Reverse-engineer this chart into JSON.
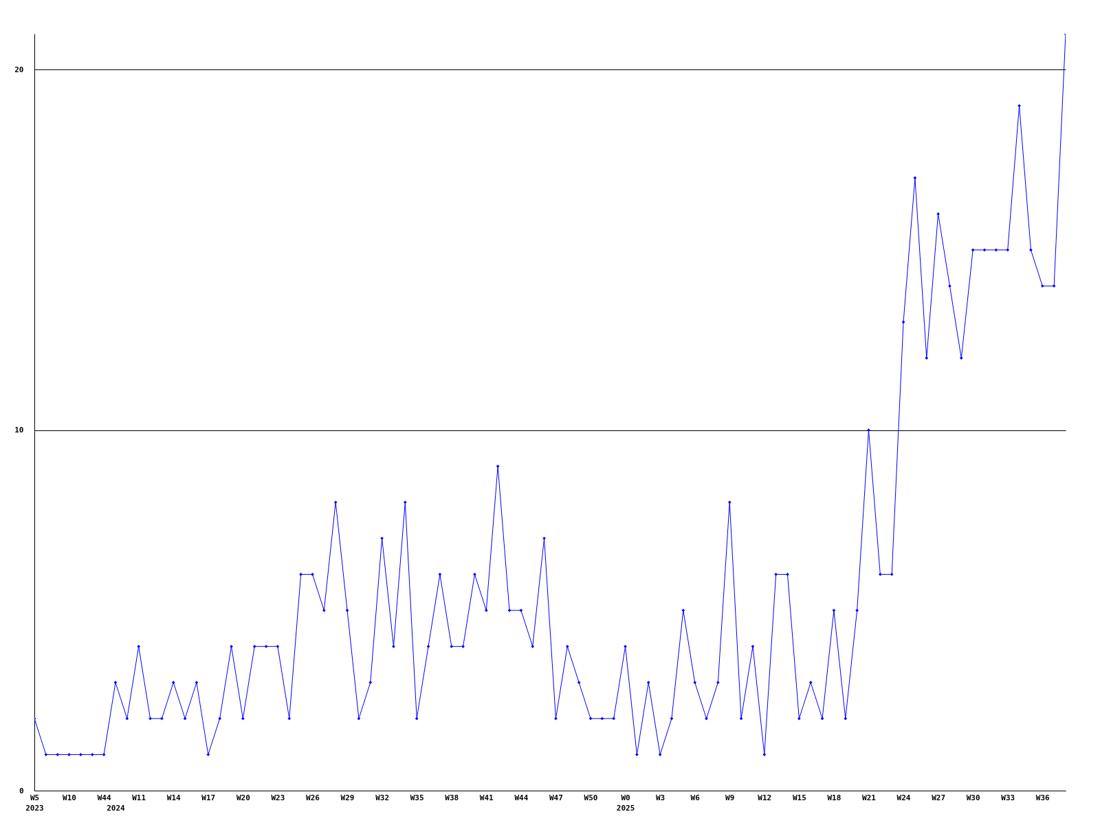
{
  "chart_data": {
    "type": "line",
    "categories": [
      "W5\n2023",
      null,
      null,
      "W10",
      null,
      null,
      "W44",
      "\n2024",
      null,
      "W11",
      null,
      null,
      "W14",
      null,
      null,
      "W17",
      null,
      null,
      "W20",
      null,
      null,
      "W23",
      null,
      null,
      "W26",
      null,
      null,
      "W29",
      null,
      null,
      "W32",
      null,
      null,
      "W35",
      null,
      null,
      "W38",
      null,
      null,
      "W41",
      null,
      null,
      "W44",
      null,
      null,
      "W47",
      null,
      null,
      "W50",
      null,
      null,
      "W0\n2025",
      null,
      null,
      "W3",
      null,
      null,
      "W6",
      null,
      null,
      "W9",
      null,
      null,
      "W12",
      null,
      null,
      "W15",
      null,
      null,
      "W18",
      null,
      null,
      "W21",
      null,
      null,
      "W24",
      null,
      null,
      "W27",
      null,
      null,
      "W30",
      null,
      null,
      "W33",
      null,
      null,
      "W36",
      null,
      null
    ],
    "series": [
      {
        "color": "#0000ff",
        "values": [
          2,
          1,
          1,
          1,
          1,
          1,
          1,
          3,
          2,
          4,
          2,
          2,
          3,
          2,
          3,
          1,
          2,
          4,
          2,
          4,
          4,
          4,
          2,
          6,
          6,
          5,
          8,
          5,
          2,
          3,
          7,
          4,
          8,
          2,
          4,
          6,
          4,
          4,
          6,
          5,
          9,
          5,
          5,
          4,
          7,
          2,
          4,
          3,
          2,
          2,
          2,
          4,
          1,
          3,
          1,
          2,
          5,
          3,
          2,
          3,
          8,
          2,
          4,
          1,
          6,
          6,
          2,
          3,
          2,
          5,
          2,
          5,
          10,
          6,
          6,
          13,
          17,
          12,
          16,
          14,
          12,
          15,
          15,
          15,
          15,
          19,
          15,
          14,
          14,
          21
        ]
      }
    ],
    "ylim": [
      0,
      21
    ],
    "yticks": [
      0,
      10,
      20
    ],
    "grid": "y",
    "marker": "diamond",
    "line_style": "solid"
  }
}
